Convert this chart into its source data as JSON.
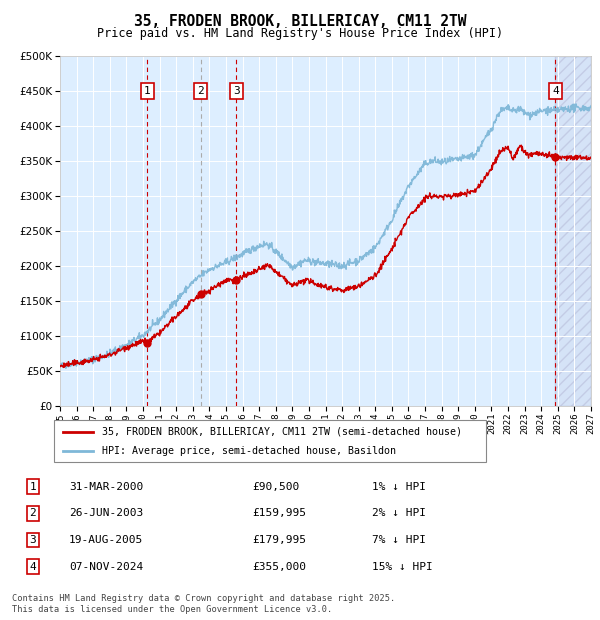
{
  "title": "35, FRODEN BROOK, BILLERICAY, CM11 2TW",
  "subtitle": "Price paid vs. HM Land Registry's House Price Index (HPI)",
  "legend_line1": "35, FRODEN BROOK, BILLERICAY, CM11 2TW (semi-detached house)",
  "legend_line2": "HPI: Average price, semi-detached house, Basildon",
  "footer1": "Contains HM Land Registry data © Crown copyright and database right 2025.",
  "footer2": "This data is licensed under the Open Government Licence v3.0.",
  "transactions": [
    {
      "num": 1,
      "date": "31-MAR-2000",
      "price": 90500,
      "price_str": "£90,500",
      "pct": "1%",
      "year": 2000.25
    },
    {
      "num": 2,
      "date": "26-JUN-2003",
      "price": 159995,
      "price_str": "£159,995",
      "pct": "2%",
      "year": 2003.49
    },
    {
      "num": 3,
      "date": "19-AUG-2005",
      "price": 179995,
      "price_str": "£179,995",
      "pct": "7%",
      "year": 2005.63
    },
    {
      "num": 4,
      "date": "07-NOV-2024",
      "price": 355000,
      "price_str": "£355,000",
      "pct": "15%",
      "year": 2024.85
    }
  ],
  "ylim": [
    0,
    500000
  ],
  "yticks": [
    0,
    50000,
    100000,
    150000,
    200000,
    250000,
    300000,
    350000,
    400000,
    450000,
    500000
  ],
  "xlim": [
    1995,
    2027
  ],
  "xticks": [
    1995,
    1996,
    1997,
    1998,
    1999,
    2000,
    2001,
    2002,
    2003,
    2004,
    2005,
    2006,
    2007,
    2008,
    2009,
    2010,
    2011,
    2012,
    2013,
    2014,
    2015,
    2016,
    2017,
    2018,
    2019,
    2020,
    2021,
    2022,
    2023,
    2024,
    2025,
    2026,
    2027
  ],
  "hpi_color": "#7fb8d8",
  "price_color": "#cc0000",
  "bg_color": "#ddeeff",
  "grid_color": "#ffffff",
  "hatch_start": 2024.85
}
